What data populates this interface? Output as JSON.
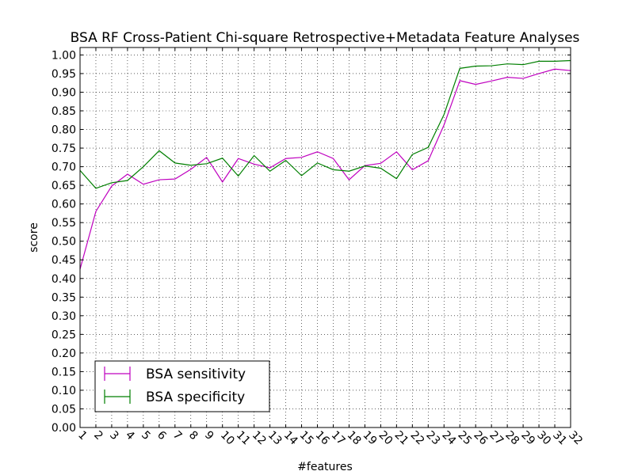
{
  "chart_data": {
    "type": "line",
    "title": "BSA RF Cross-Patient Chi-square Retrospective+Metadata Feature Analyses",
    "xlabel": "#features",
    "ylabel": "score",
    "xlim": [
      1,
      32
    ],
    "ylim": [
      0,
      1.02
    ],
    "grid": true,
    "legend_position": "lower-left",
    "x": [
      1,
      2,
      3,
      4,
      5,
      6,
      7,
      8,
      9,
      10,
      11,
      12,
      13,
      14,
      15,
      16,
      17,
      18,
      19,
      20,
      21,
      22,
      23,
      24,
      25,
      26,
      27,
      28,
      29,
      30,
      31,
      32
    ],
    "x_tick_labels": [
      "1",
      "2",
      "3",
      "4",
      "5",
      "6",
      "7",
      "8",
      "9",
      "10",
      "11",
      "12",
      "13",
      "14",
      "15",
      "16",
      "17",
      "18",
      "19",
      "20",
      "21",
      "22",
      "23",
      "24",
      "25",
      "26",
      "27",
      "28",
      "29",
      "30",
      "31",
      "32"
    ],
    "y_ticks": [
      0,
      0.05,
      0.1,
      0.15,
      0.2,
      0.25,
      0.3,
      0.35,
      0.4,
      0.45,
      0.5,
      0.55,
      0.6,
      0.65,
      0.7,
      0.75,
      0.8,
      0.85,
      0.9,
      0.95,
      1.0
    ],
    "y_tick_labels": [
      "0.00",
      "0.05",
      "0.10",
      "0.15",
      "0.20",
      "0.25",
      "0.30",
      "0.35",
      "0.40",
      "0.45",
      "0.50",
      "0.55",
      "0.60",
      "0.65",
      "0.70",
      "0.75",
      "0.80",
      "0.85",
      "0.90",
      "0.95",
      "1.00"
    ],
    "series": [
      {
        "name": "BSA sensitivity",
        "color": "#bf00bf",
        "values": [
          0.425,
          0.58,
          0.648,
          0.68,
          0.653,
          0.665,
          0.667,
          0.693,
          0.725,
          0.659,
          0.722,
          0.707,
          0.697,
          0.722,
          0.725,
          0.74,
          0.722,
          0.665,
          0.703,
          0.709,
          0.74,
          0.692,
          0.716,
          0.812,
          0.931,
          0.921,
          0.93,
          0.94,
          0.937,
          0.95,
          0.962,
          0.958
        ]
      },
      {
        "name": "BSA specificity",
        "color": "#007f00",
        "values": [
          0.69,
          0.642,
          0.657,
          0.663,
          0.7,
          0.743,
          0.71,
          0.704,
          0.708,
          0.723,
          0.675,
          0.73,
          0.688,
          0.717,
          0.676,
          0.71,
          0.692,
          0.688,
          0.702,
          0.696,
          0.668,
          0.733,
          0.752,
          0.84,
          0.964,
          0.97,
          0.971,
          0.976,
          0.974,
          0.983,
          0.983,
          0.985
        ]
      }
    ]
  }
}
